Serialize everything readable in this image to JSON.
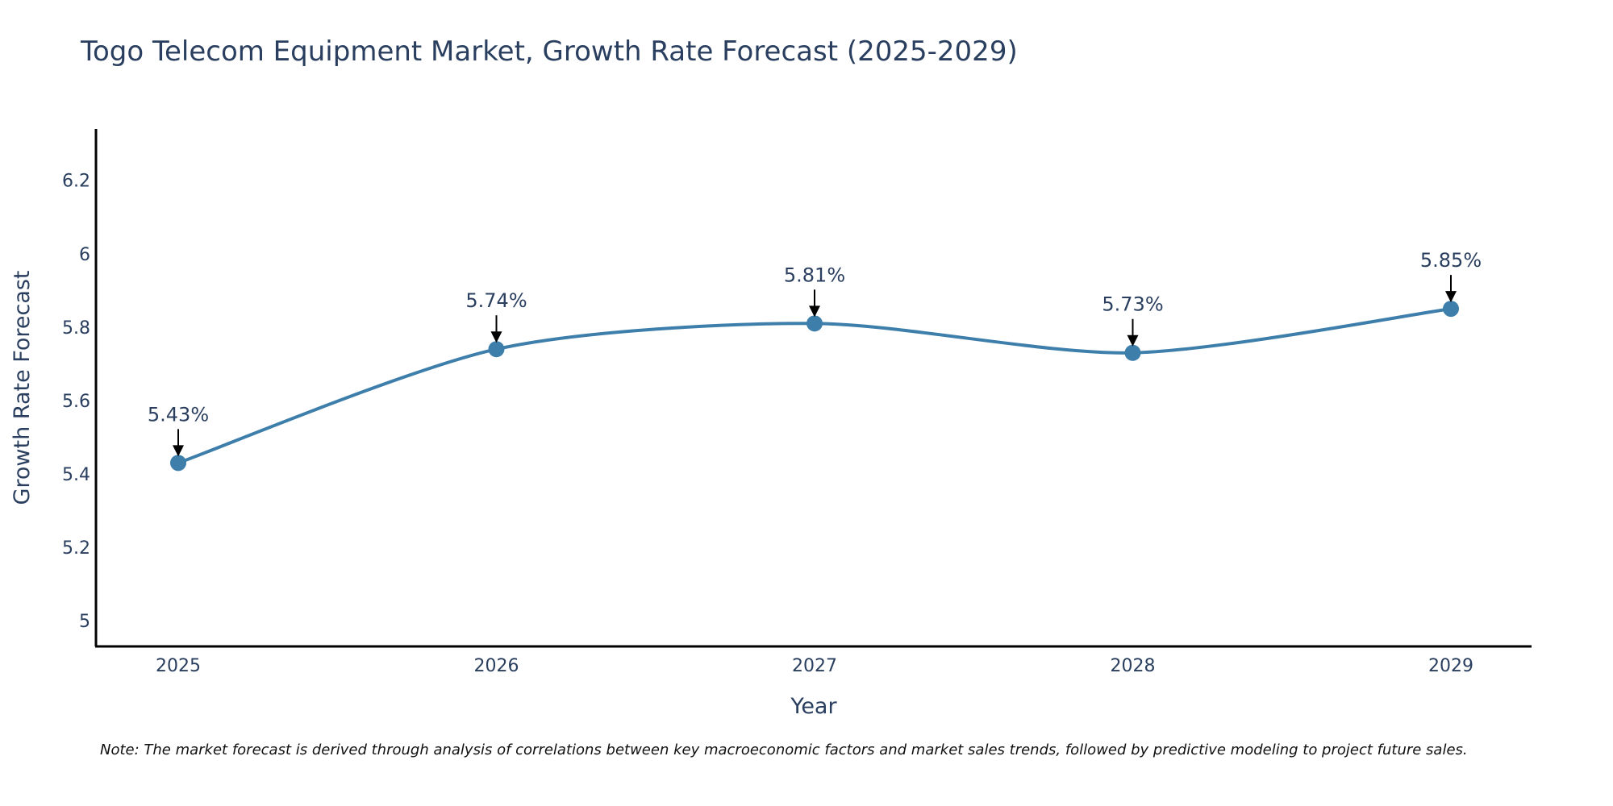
{
  "chart_data": {
    "type": "line",
    "title": "Togo Telecom Equipment Market, Growth Rate Forecast (2025-2029)",
    "xlabel": "Year",
    "ylabel": "Growth Rate Forecast",
    "categories": [
      "2025",
      "2026",
      "2027",
      "2028",
      "2029"
    ],
    "values": [
      5.43,
      5.74,
      5.81,
      5.73,
      5.85
    ],
    "data_labels": [
      "5.43%",
      "5.74%",
      "5.81%",
      "5.73%",
      "5.85%"
    ],
    "y_ticks": [
      5,
      5.2,
      5.4,
      5.6,
      5.8,
      6,
      6.2
    ],
    "y_tick_labels": [
      "5",
      "5.2",
      "5.4",
      "5.6",
      "5.8",
      "6",
      "6.2"
    ],
    "ylim": [
      4.93,
      6.34
    ],
    "grid": false,
    "line_color": "#3d7eab",
    "note": "Note: The market forecast is derived through analysis of correlations between key macroeconomic factors and market sales trends, followed by predictive modeling to project future sales."
  }
}
